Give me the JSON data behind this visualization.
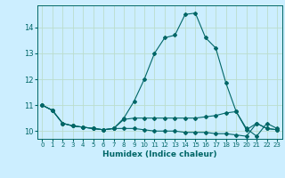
{
  "xlabel": "Humidex (Indice chaleur)",
  "ylabel": "",
  "background_color": "#cceeff",
  "grid_color": "#bbddcc",
  "line_color": "#006666",
  "xlim": [
    -0.5,
    23.5
  ],
  "ylim": [
    9.7,
    14.85
  ],
  "yticks": [
    10,
    11,
    12,
    13,
    14
  ],
  "xticks": [
    0,
    1,
    2,
    3,
    4,
    5,
    6,
    7,
    8,
    9,
    10,
    11,
    12,
    13,
    14,
    15,
    16,
    17,
    18,
    19,
    20,
    21,
    22,
    23
  ],
  "series": [
    {
      "x": [
        0,
        1,
        2,
        3,
        4,
        5,
        6,
        7,
        8,
        9,
        10,
        11,
        12,
        13,
        14,
        15,
        16,
        17,
        18,
        19,
        20,
        21,
        22,
        23
      ],
      "y": [
        11.0,
        10.8,
        10.3,
        10.2,
        10.15,
        10.1,
        10.05,
        10.1,
        10.5,
        11.15,
        12.0,
        13.0,
        13.6,
        13.7,
        14.5,
        14.55,
        13.6,
        13.2,
        11.85,
        10.75,
        10.1,
        9.8,
        10.3,
        10.1
      ]
    },
    {
      "x": [
        0,
        1,
        2,
        3,
        4,
        5,
        6,
        7,
        8,
        9,
        10,
        11,
        12,
        13,
        14,
        15,
        16,
        17,
        18,
        19,
        20,
        21,
        22,
        23
      ],
      "y": [
        11.0,
        10.8,
        10.3,
        10.2,
        10.15,
        10.1,
        10.05,
        10.1,
        10.45,
        10.5,
        10.5,
        10.5,
        10.5,
        10.5,
        10.5,
        10.5,
        10.55,
        10.6,
        10.7,
        10.75,
        10.05,
        10.3,
        10.1,
        10.05
      ]
    },
    {
      "x": [
        0,
        1,
        2,
        3,
        4,
        5,
        6,
        7,
        8,
        9,
        10,
        11,
        12,
        13,
        14,
        15,
        16,
        17,
        18,
        19,
        20,
        21,
        22,
        23
      ],
      "y": [
        11.0,
        10.8,
        10.3,
        10.2,
        10.15,
        10.1,
        10.05,
        10.1,
        10.1,
        10.1,
        10.05,
        10.0,
        10.0,
        10.0,
        9.95,
        9.95,
        9.95,
        9.9,
        9.9,
        9.85,
        9.8,
        10.3,
        10.1,
        10.05
      ]
    }
  ]
}
